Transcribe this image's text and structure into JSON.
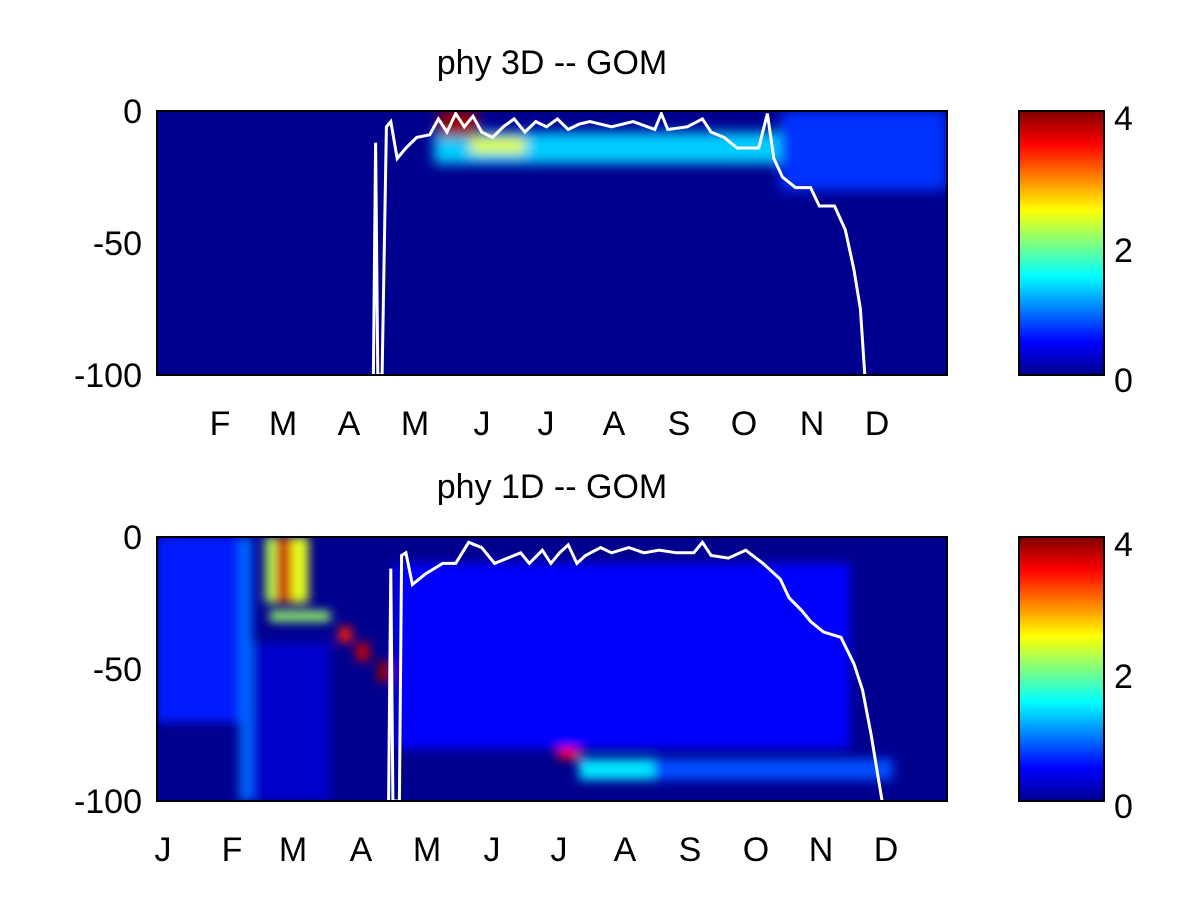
{
  "chart_data": [
    {
      "type": "heatmap",
      "title": "phy 3D   -- GOM",
      "x_tick_labels": [
        "F",
        "M",
        "A",
        "M",
        "J",
        "J",
        "A",
        "S",
        "O",
        "N",
        "D"
      ],
      "y_tick_labels": [
        "0",
        "-50",
        "-100"
      ],
      "ylim": [
        -100,
        0
      ],
      "xlim_days": [
        0,
        365
      ],
      "colormap": "jet",
      "colorbar": {
        "ticks": [
          "4",
          "2",
          "0"
        ],
        "range": [
          0,
          4
        ]
      },
      "overlay_line_color": "#ffffff",
      "features": [
        {
          "x0": 128,
          "x1": 310,
          "y_top": -8,
          "y_bot": -20,
          "value": 1.3
        },
        {
          "x0": 130,
          "x1": 148,
          "y_top": 0,
          "y_bot": -10,
          "value": 3.9
        },
        {
          "x0": 145,
          "x1": 170,
          "y_top": -10,
          "y_bot": -16,
          "value": 2.4
        },
        {
          "x0": 288,
          "x1": 365,
          "y_top": 0,
          "y_bot": -30,
          "value": 0.7
        }
      ],
      "mld_line": [
        [
          100,
          -100
        ],
        [
          101,
          -12
        ],
        [
          102,
          -100
        ],
        [
          104,
          -100
        ],
        [
          106,
          -6
        ],
        [
          108,
          -4
        ],
        [
          111,
          -18
        ],
        [
          115,
          -14
        ],
        [
          120,
          -10
        ],
        [
          126,
          -9
        ],
        [
          130,
          -3
        ],
        [
          134,
          -8
        ],
        [
          138,
          -1
        ],
        [
          142,
          -6
        ],
        [
          146,
          -2
        ],
        [
          150,
          -8
        ],
        [
          155,
          -10
        ],
        [
          160,
          -6
        ],
        [
          165,
          -3
        ],
        [
          170,
          -8
        ],
        [
          175,
          -4
        ],
        [
          180,
          -6
        ],
        [
          185,
          -3
        ],
        [
          190,
          -7
        ],
        [
          195,
          -5
        ],
        [
          200,
          -4
        ],
        [
          210,
          -6
        ],
        [
          220,
          -4
        ],
        [
          230,
          -7
        ],
        [
          233,
          -1
        ],
        [
          236,
          -7
        ],
        [
          245,
          -6
        ],
        [
          252,
          -3
        ],
        [
          256,
          -8
        ],
        [
          262,
          -10
        ],
        [
          268,
          -14
        ],
        [
          278,
          -14
        ],
        [
          282,
          -1
        ],
        [
          285,
          -18
        ],
        [
          289,
          -25
        ],
        [
          295,
          -29
        ],
        [
          302,
          -29
        ],
        [
          306,
          -36
        ],
        [
          313,
          -36
        ],
        [
          318,
          -45
        ],
        [
          322,
          -60
        ],
        [
          325,
          -75
        ],
        [
          327,
          -100
        ]
      ]
    },
    {
      "type": "heatmap",
      "title": "phy 1D   -- GOM",
      "x_tick_labels": [
        "J",
        "F",
        "M",
        "A",
        "M",
        "J",
        "J",
        "A",
        "S",
        "O",
        "N",
        "D"
      ],
      "y_tick_labels": [
        "0",
        "-50",
        "-100"
      ],
      "ylim": [
        -100,
        0
      ],
      "xlim_days": [
        0,
        365
      ],
      "colormap": "jet",
      "colorbar": {
        "ticks": [
          "4",
          "2",
          "0"
        ],
        "range": [
          0,
          4
        ]
      },
      "overlay_line_color": "#ffffff",
      "features": [
        {
          "x0": 0,
          "x1": 40,
          "y_top": 0,
          "y_bot": -70,
          "value": 0.6
        },
        {
          "x0": 38,
          "x1": 44,
          "y_top": 0,
          "y_bot": -100,
          "value": 0.9
        },
        {
          "x0": 44,
          "x1": 80,
          "y_top": -40,
          "y_bot": -100,
          "value": 0.3
        },
        {
          "x0": 50,
          "x1": 58,
          "y_top": 0,
          "y_bot": -25,
          "value": 2.2
        },
        {
          "x0": 55,
          "x1": 66,
          "y_top": 0,
          "y_bot": -25,
          "value": 3.7
        },
        {
          "x0": 62,
          "x1": 70,
          "y_top": 0,
          "y_bot": -25,
          "value": 2.4
        },
        {
          "x0": 52,
          "x1": 80,
          "y_top": -28,
          "y_bot": -32,
          "value": 2.1
        },
        {
          "x0": 84,
          "x1": 90,
          "y_top": -34,
          "y_bot": -40,
          "value": 3.4
        },
        {
          "x0": 92,
          "x1": 98,
          "y_top": -40,
          "y_bot": -47,
          "value": 3.7
        },
        {
          "x0": 102,
          "x1": 108,
          "y_top": -47,
          "y_bot": -55,
          "value": 3.9
        },
        {
          "x0": 117,
          "x1": 126,
          "y_top": -55,
          "y_bot": -63,
          "value": 3.9
        },
        {
          "x0": 138,
          "x1": 150,
          "y_top": -63,
          "y_bot": -70,
          "value": 3.9
        },
        {
          "x0": 160,
          "x1": 172,
          "y_top": -70,
          "y_bot": -77,
          "value": 3.8
        },
        {
          "x0": 185,
          "x1": 195,
          "y_top": -77,
          "y_bot": -84,
          "value": 3.5
        },
        {
          "x0": 195,
          "x1": 230,
          "y_top": -84,
          "y_bot": -92,
          "value": 1.4
        },
        {
          "x0": 230,
          "x1": 340,
          "y_top": -84,
          "y_bot": -92,
          "value": 0.8
        },
        {
          "x0": 110,
          "x1": 320,
          "y_top": -10,
          "y_bot": -80,
          "value": 0.5
        }
      ],
      "mld_line": [
        [
          107,
          -100
        ],
        [
          108,
          -12
        ],
        [
          109,
          -100
        ],
        [
          112,
          -100
        ],
        [
          113,
          -7
        ],
        [
          115,
          -6
        ],
        [
          118,
          -18
        ],
        [
          124,
          -14
        ],
        [
          132,
          -10
        ],
        [
          138,
          -10
        ],
        [
          144,
          -2
        ],
        [
          150,
          -4
        ],
        [
          156,
          -10
        ],
        [
          162,
          -8
        ],
        [
          168,
          -6
        ],
        [
          172,
          -10
        ],
        [
          178,
          -5
        ],
        [
          182,
          -10
        ],
        [
          186,
          -6
        ],
        [
          190,
          -3
        ],
        [
          194,
          -10
        ],
        [
          198,
          -7
        ],
        [
          205,
          -4
        ],
        [
          210,
          -6
        ],
        [
          218,
          -4
        ],
        [
          225,
          -6
        ],
        [
          232,
          -5
        ],
        [
          240,
          -6
        ],
        [
          248,
          -6
        ],
        [
          252,
          -2
        ],
        [
          256,
          -7
        ],
        [
          264,
          -8
        ],
        [
          272,
          -5
        ],
        [
          280,
          -10
        ],
        [
          288,
          -16
        ],
        [
          292,
          -23
        ],
        [
          298,
          -28
        ],
        [
          302,
          -32
        ],
        [
          308,
          -36
        ],
        [
          316,
          -38
        ],
        [
          322,
          -48
        ],
        [
          326,
          -58
        ],
        [
          330,
          -75
        ],
        [
          333,
          -90
        ],
        [
          335,
          -100
        ]
      ]
    }
  ]
}
